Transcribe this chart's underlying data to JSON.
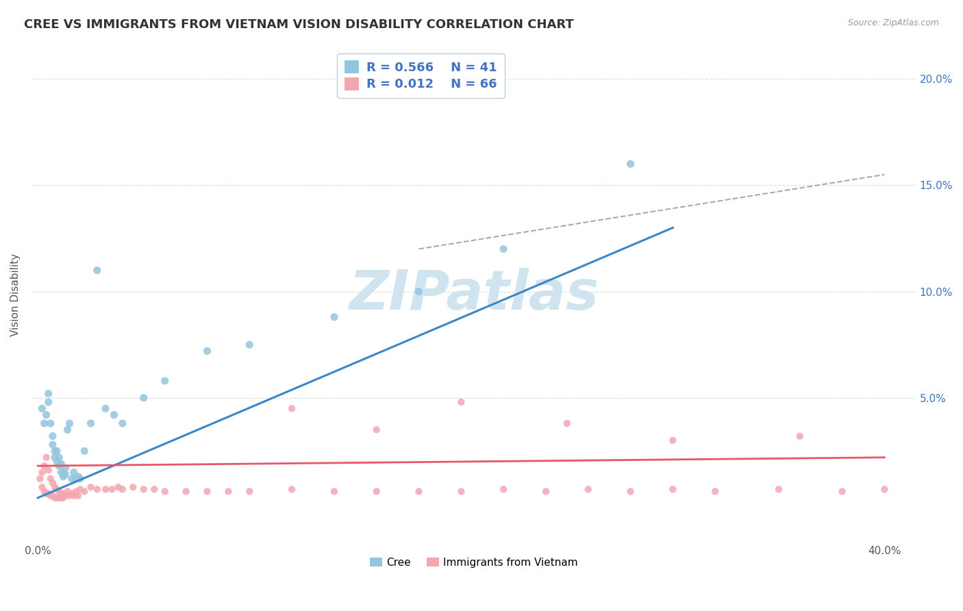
{
  "title": "CREE VS IMMIGRANTS FROM VIETNAM VISION DISABILITY CORRELATION CHART",
  "source": "Source: ZipAtlas.com",
  "ylabel": "Vision Disability",
  "yticks_right": [
    "5.0%",
    "10.0%",
    "15.0%",
    "20.0%"
  ],
  "yticks_right_vals": [
    0.05,
    0.1,
    0.15,
    0.2
  ],
  "xlim": [
    -0.003,
    0.415
  ],
  "ylim": [
    -0.018,
    0.215
  ],
  "legend1_r": "0.566",
  "legend1_n": "41",
  "legend2_r": "0.012",
  "legend2_n": "66",
  "cree_color": "#92c5de",
  "viet_color": "#f4a6b0",
  "cree_line_color": "#3a86c8",
  "viet_line_color": "#e8546a",
  "watermark": "ZIPatlas",
  "watermark_color": "#d0e4f0",
  "background_color": "#ffffff",
  "title_color": "#333333",
  "title_fontsize": 13,
  "cree_scatter_x": [
    0.002,
    0.003,
    0.004,
    0.005,
    0.005,
    0.006,
    0.007,
    0.007,
    0.008,
    0.008,
    0.009,
    0.009,
    0.01,
    0.01,
    0.011,
    0.011,
    0.012,
    0.012,
    0.013,
    0.013,
    0.014,
    0.015,
    0.016,
    0.017,
    0.018,
    0.019,
    0.02,
    0.022,
    0.025,
    0.028,
    0.032,
    0.036,
    0.04,
    0.05,
    0.06,
    0.08,
    0.1,
    0.14,
    0.18,
    0.22,
    0.28
  ],
  "cree_scatter_y": [
    0.045,
    0.038,
    0.042,
    0.048,
    0.052,
    0.038,
    0.032,
    0.028,
    0.025,
    0.022,
    0.025,
    0.02,
    0.018,
    0.022,
    0.019,
    0.015,
    0.014,
    0.013,
    0.014,
    0.017,
    0.035,
    0.038,
    0.012,
    0.015,
    0.012,
    0.013,
    0.012,
    0.025,
    0.038,
    0.11,
    0.045,
    0.042,
    0.038,
    0.05,
    0.058,
    0.072,
    0.075,
    0.088,
    0.1,
    0.12,
    0.16
  ],
  "viet_scatter_x": [
    0.001,
    0.002,
    0.002,
    0.003,
    0.003,
    0.004,
    0.004,
    0.005,
    0.005,
    0.006,
    0.006,
    0.007,
    0.007,
    0.008,
    0.008,
    0.009,
    0.009,
    0.01,
    0.01,
    0.011,
    0.011,
    0.012,
    0.012,
    0.013,
    0.014,
    0.015,
    0.016,
    0.017,
    0.018,
    0.019,
    0.02,
    0.022,
    0.025,
    0.028,
    0.032,
    0.035,
    0.038,
    0.04,
    0.045,
    0.05,
    0.055,
    0.06,
    0.07,
    0.08,
    0.09,
    0.1,
    0.12,
    0.14,
    0.16,
    0.18,
    0.2,
    0.22,
    0.24,
    0.26,
    0.28,
    0.3,
    0.32,
    0.35,
    0.38,
    0.4,
    0.12,
    0.16,
    0.2,
    0.25,
    0.3,
    0.36
  ],
  "viet_scatter_y": [
    0.012,
    0.008,
    0.015,
    0.006,
    0.018,
    0.005,
    0.022,
    0.005,
    0.016,
    0.004,
    0.012,
    0.004,
    0.01,
    0.003,
    0.008,
    0.003,
    0.007,
    0.003,
    0.006,
    0.003,
    0.005,
    0.003,
    0.005,
    0.004,
    0.006,
    0.004,
    0.005,
    0.004,
    0.006,
    0.004,
    0.007,
    0.006,
    0.008,
    0.007,
    0.007,
    0.007,
    0.008,
    0.007,
    0.008,
    0.007,
    0.007,
    0.006,
    0.006,
    0.006,
    0.006,
    0.006,
    0.007,
    0.006,
    0.006,
    0.006,
    0.006,
    0.007,
    0.006,
    0.007,
    0.006,
    0.007,
    0.006,
    0.007,
    0.006,
    0.007,
    0.045,
    0.035,
    0.048,
    0.038,
    0.03,
    0.032
  ],
  "cree_line_x": [
    0.0,
    0.3
  ],
  "cree_line_y": [
    0.003,
    0.13
  ],
  "viet_line_x": [
    0.0,
    0.4
  ],
  "viet_line_y": [
    0.018,
    0.022
  ],
  "dash_line_x": [
    0.18,
    0.4
  ],
  "dash_line_y": [
    0.12,
    0.155
  ]
}
